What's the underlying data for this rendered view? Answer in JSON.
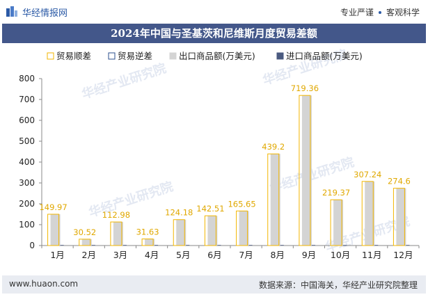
{
  "header": {
    "logo_text": "华经情报网",
    "tagline_left": "专业严谨",
    "tagline_right": "客观科学"
  },
  "title": "2024年中国与圣基茨和尼维斯月度贸易差额",
  "footer": {
    "website": "www.huaon.com",
    "source": "数据来源：中国海关，华经产业研究院整理"
  },
  "watermark": "华经产业研究院",
  "colors": {
    "surplus_border": "#f2b600",
    "deficit_border": "#2b4f8e",
    "export_fill": "#d4d4d4",
    "import_fill": "#4a5a80",
    "label": "#e0a800",
    "title_bg": "#43578a"
  },
  "chart_data": {
    "type": "bar",
    "categories": [
      "1月",
      "2月",
      "3月",
      "4月",
      "5月",
      "6月",
      "7月",
      "8月",
      "9月",
      "10月",
      "11月",
      "12月"
    ],
    "series": [
      {
        "name": "贸易顺差",
        "values": [
          149.97,
          30.52,
          112.98,
          31.63,
          124.18,
          142.51,
          165.65,
          439.2,
          719.36,
          219.37,
          307.24,
          274.6
        ]
      },
      {
        "name": "贸易逆差",
        "values": [
          0,
          0,
          0,
          0,
          0,
          0,
          0,
          0,
          0,
          0,
          0,
          0
        ]
      },
      {
        "name": "出口商品额(万美元)",
        "values": [
          149.97,
          30.52,
          112.98,
          31.63,
          124.18,
          142.51,
          165.65,
          439.2,
          719.36,
          219.37,
          307.24,
          274.6
        ]
      },
      {
        "name": "进口商品额(万美元)",
        "values": [
          0,
          0,
          0,
          0,
          0,
          0,
          0,
          0,
          0,
          0,
          0,
          0
        ]
      }
    ],
    "data_labels": [
      "149.97",
      "30.52",
      "112.98",
      "31.63",
      "124.18",
      "142.51",
      "165.65",
      "439.2",
      "719.36",
      "219.37",
      "307.24",
      "274.6"
    ],
    "ylim": [
      0,
      800
    ],
    "yticks": [
      0,
      100,
      200,
      300,
      400,
      500,
      600,
      700,
      800
    ],
    "grid": false,
    "legend_position": "top"
  }
}
